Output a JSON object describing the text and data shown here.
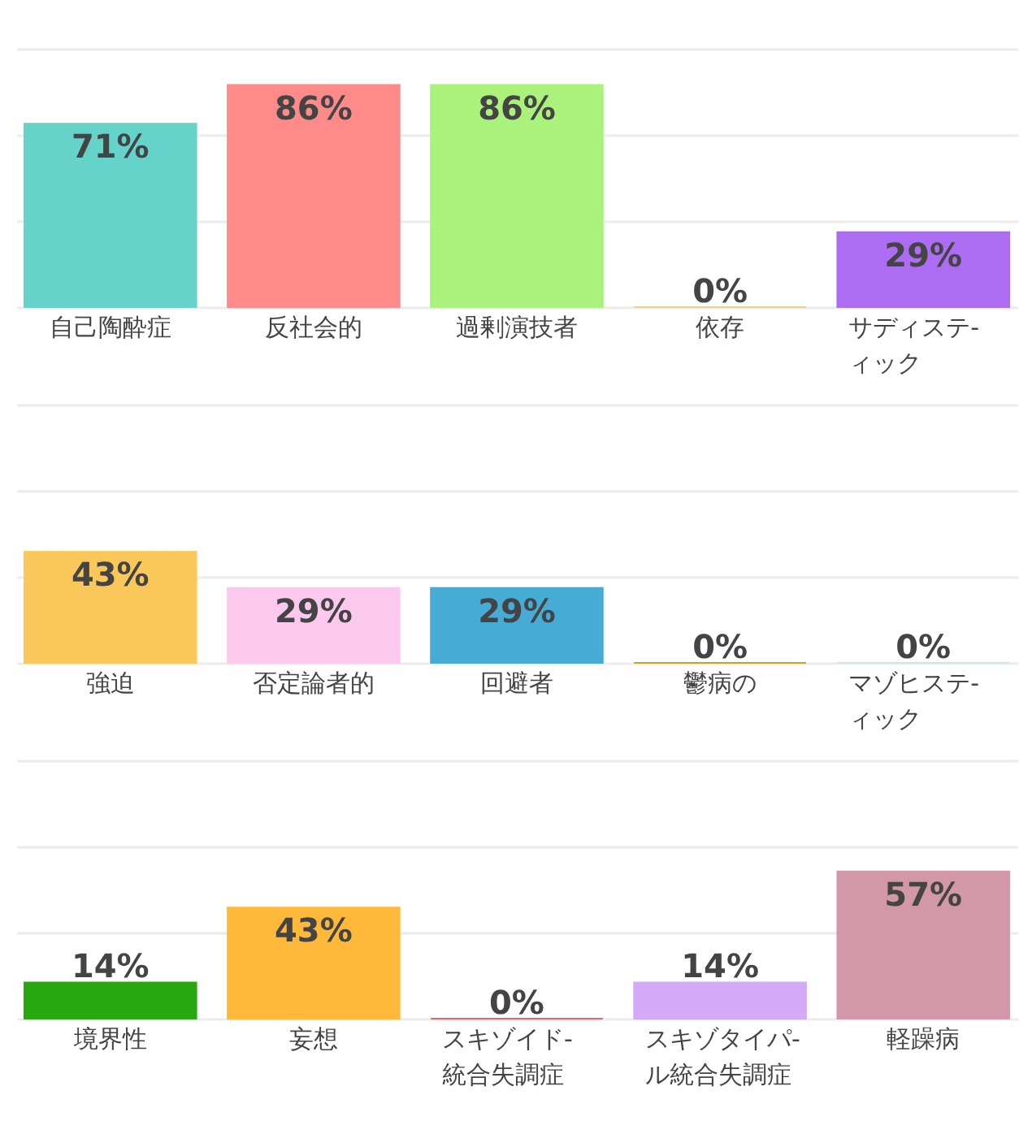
{
  "chart_data": [
    {
      "type": "bar",
      "categories": [
        "自己陶酔症",
        "反社会的",
        "過剰演技者",
        "依存",
        "サディステ-\nィック"
      ],
      "values": [
        71,
        86,
        86,
        0,
        29
      ],
      "value_labels": [
        "71%",
        "86%",
        "86%",
        "0%",
        "29%"
      ],
      "colors": [
        "#66d3cb",
        "#ff8a8a",
        "#abf27c",
        "#ffc98b",
        "#ad6df2"
      ],
      "ylim": [
        0,
        100
      ],
      "yticks": [
        {
          "value": 0,
          "label": null
        },
        {
          "value": 33.3,
          "label": null
        },
        {
          "value": 66.7,
          "label": null
        },
        {
          "value": 100,
          "label": null
        }
      ],
      "grid": "y",
      "tick_labels": "x"
    },
    {
      "type": "bar",
      "categories": [
        "強迫",
        "否定論者的",
        "回避者",
        "鬱病の",
        "マゾヒステ-\nィック"
      ],
      "values": [
        43,
        29,
        29,
        0,
        0
      ],
      "value_labels": [
        "43%",
        "29%",
        "29%",
        "0%",
        "0%"
      ],
      "colors": [
        "#fac75a",
        "#fcc9ee",
        "#46abd5",
        "#d4a017",
        "#cfe6df"
      ],
      "ylim": [
        0,
        100
      ],
      "yticks": [
        {
          "value": 0,
          "label": null
        },
        {
          "value": 33.3,
          "label": null
        },
        {
          "value": 66.7,
          "label": null
        },
        {
          "value": 100,
          "label": null
        }
      ],
      "grid": "y",
      "tick_labels": "x"
    },
    {
      "type": "bar",
      "categories": [
        "境界性",
        "妄想",
        "スキゾイド-\n統合失調症",
        "スキゾタイパ-\nル統合失調症",
        "軽躁病"
      ],
      "values": [
        14,
        43,
        0,
        14,
        57
      ],
      "value_labels": [
        "14%",
        "43%",
        "0%",
        "14%",
        "57%"
      ],
      "colors": [
        "#28a810",
        "#ffb93a",
        "#f06262",
        "#d4a9f8",
        "#d297a8"
      ],
      "ylim": [
        0,
        100
      ],
      "yticks": [
        {
          "value": 0,
          "label": null
        },
        {
          "value": 33.3,
          "label": null
        },
        {
          "value": 66.7,
          "label": null
        },
        {
          "value": 100,
          "label": null
        }
      ],
      "grid": "y",
      "tick_labels": "x"
    }
  ]
}
